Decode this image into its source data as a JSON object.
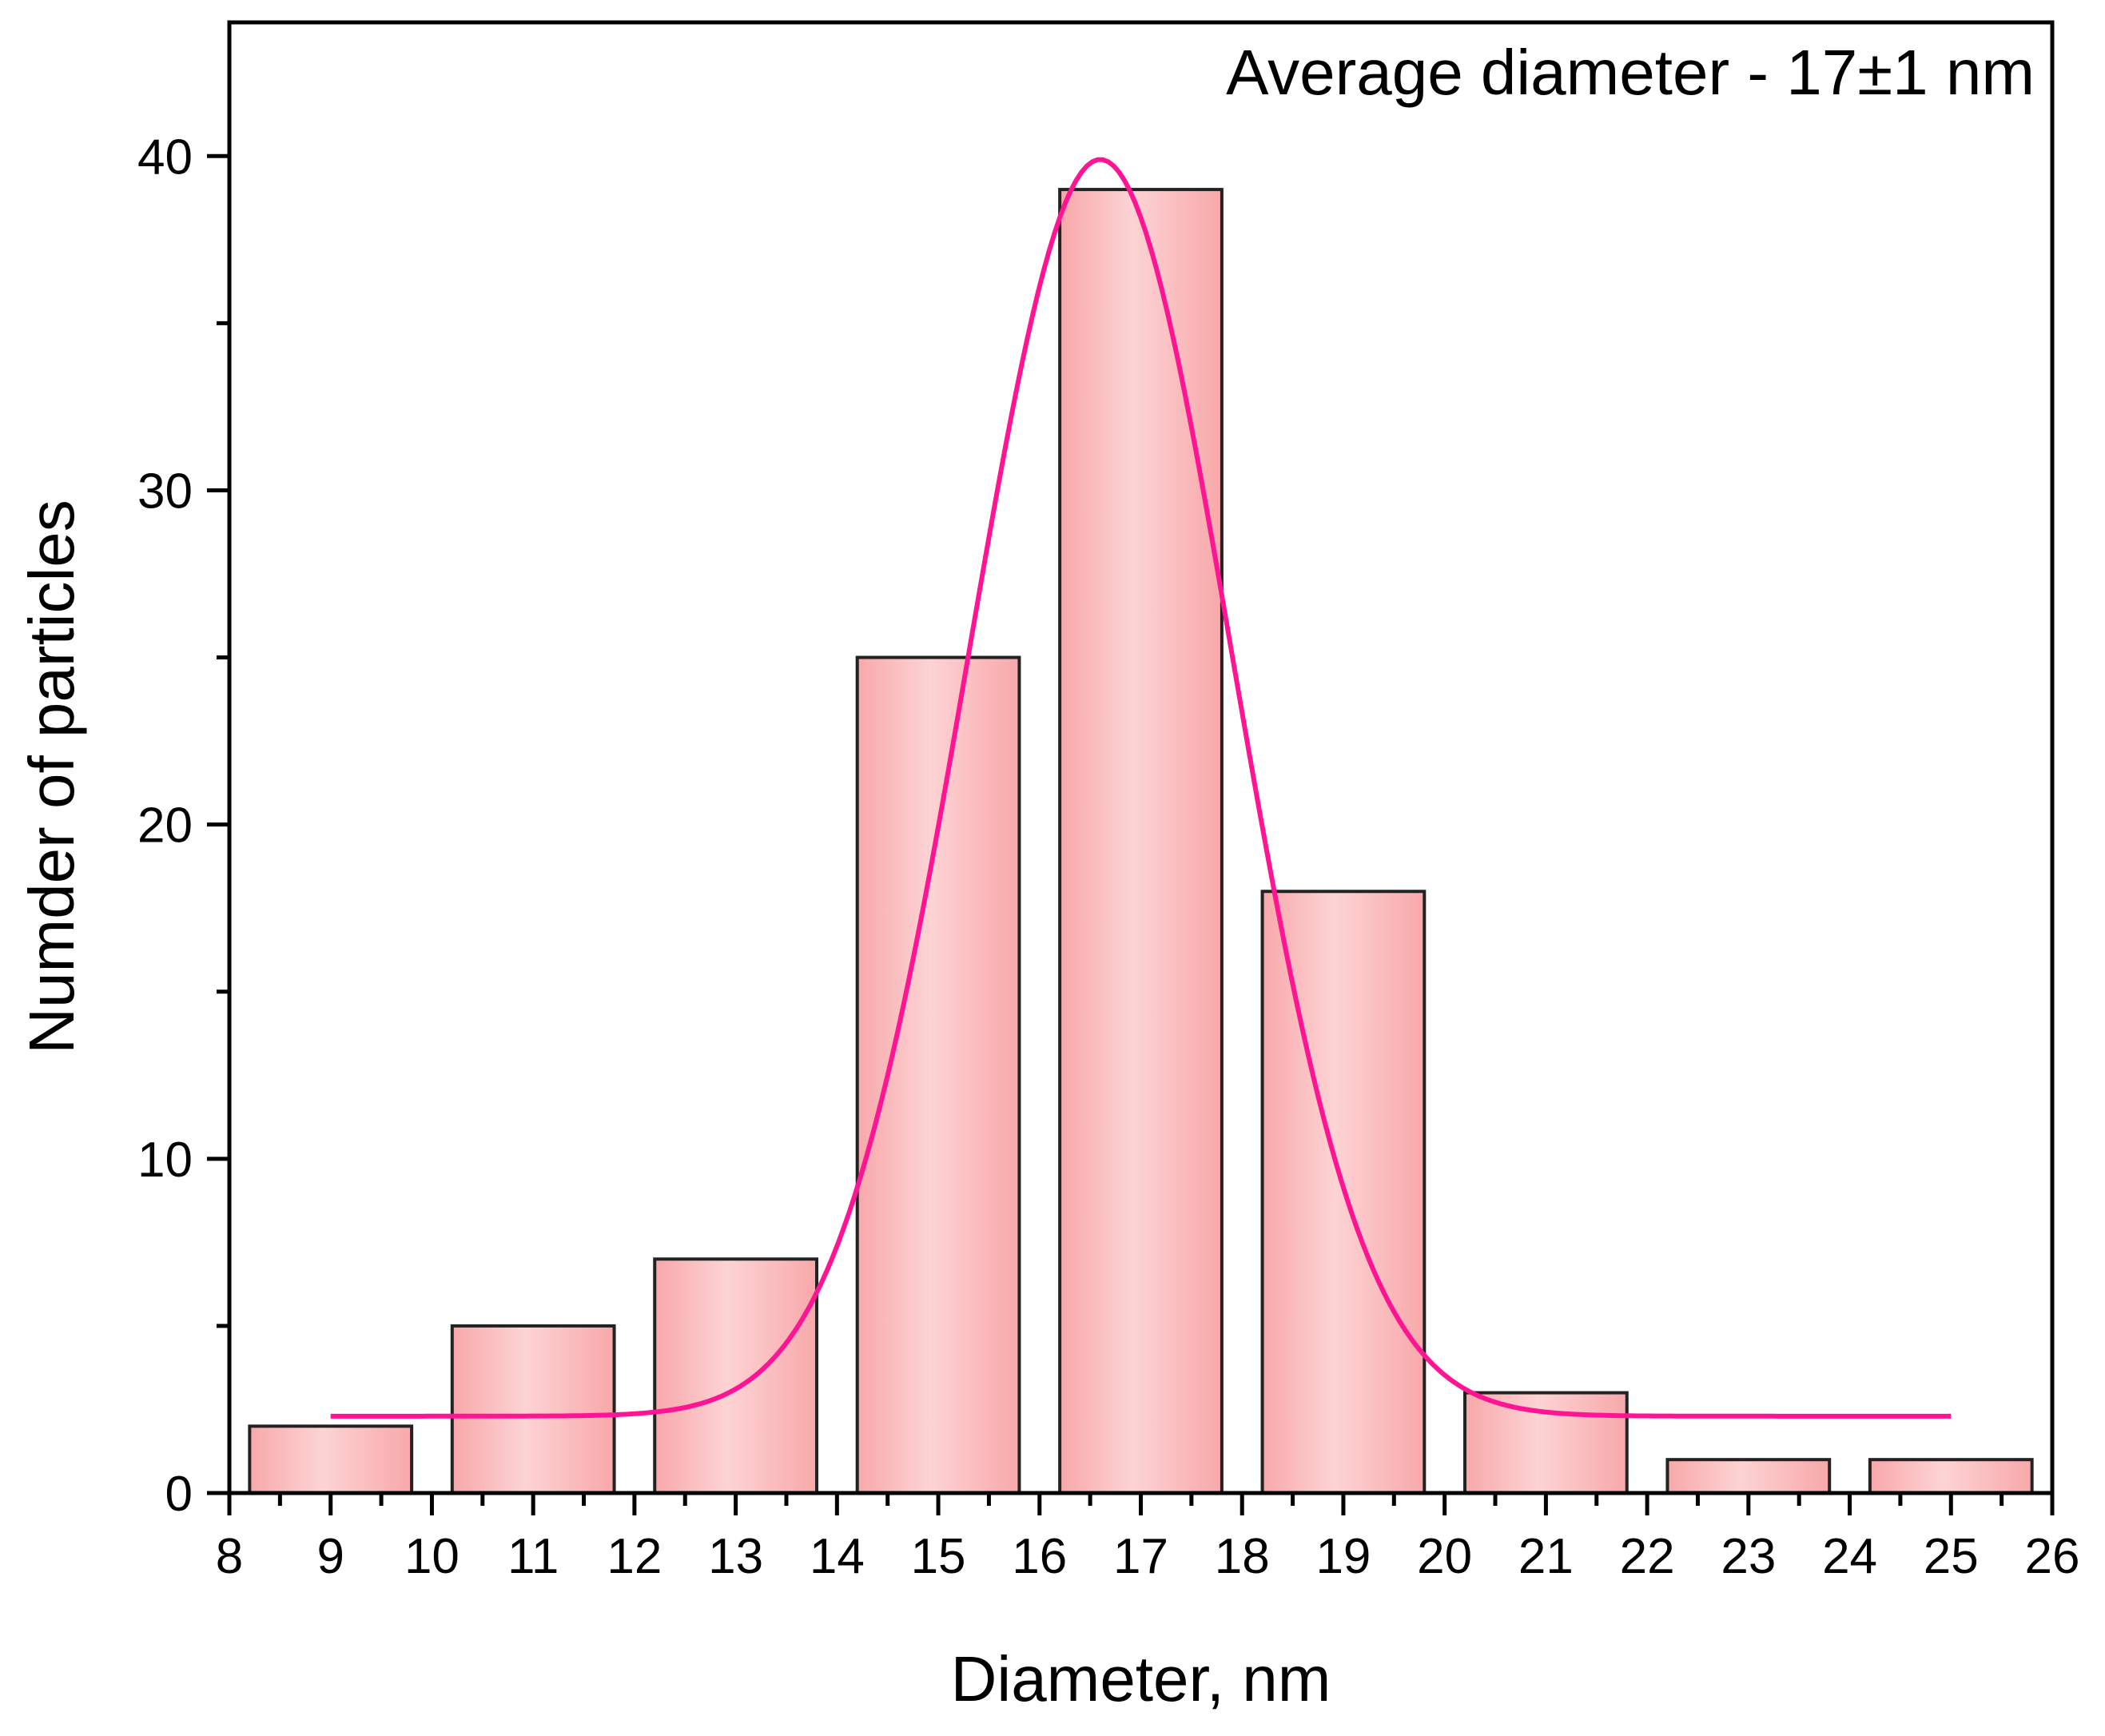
{
  "chart_data": {
    "type": "bar",
    "annotation": "Average diameter - 17±1 nm",
    "xlabel": "Diameter, nm",
    "ylabel": "Numder of particles",
    "xlim": [
      8,
      26
    ],
    "ylim": [
      0,
      44
    ],
    "x_ticks": [
      "8",
      "9",
      "10",
      "11",
      "12",
      "13",
      "14",
      "15",
      "16",
      "17",
      "18",
      "19",
      "20",
      "21",
      "22",
      "23",
      "24",
      "25",
      "26"
    ],
    "y_ticks": [
      "0",
      "10",
      "20",
      "30",
      "40"
    ],
    "bin_width": 1.6,
    "categories": [
      9,
      11,
      13,
      15,
      17,
      19,
      21,
      23,
      25
    ],
    "values": [
      2,
      5,
      7,
      25,
      39,
      18,
      3,
      1,
      1
    ],
    "fit_curve": {
      "type": "gaussian",
      "color": "#ff1493",
      "center": 16.6,
      "sigma": 1.3,
      "amplitude": 37.6,
      "baseline": 2.3,
      "x_range": [
        9,
        25
      ]
    },
    "colors": {
      "bar_edge": "#f8a8aa",
      "bar_center": "#fdd3d4",
      "bar_stroke": "#222222",
      "fit_line": "#ff1493"
    }
  }
}
